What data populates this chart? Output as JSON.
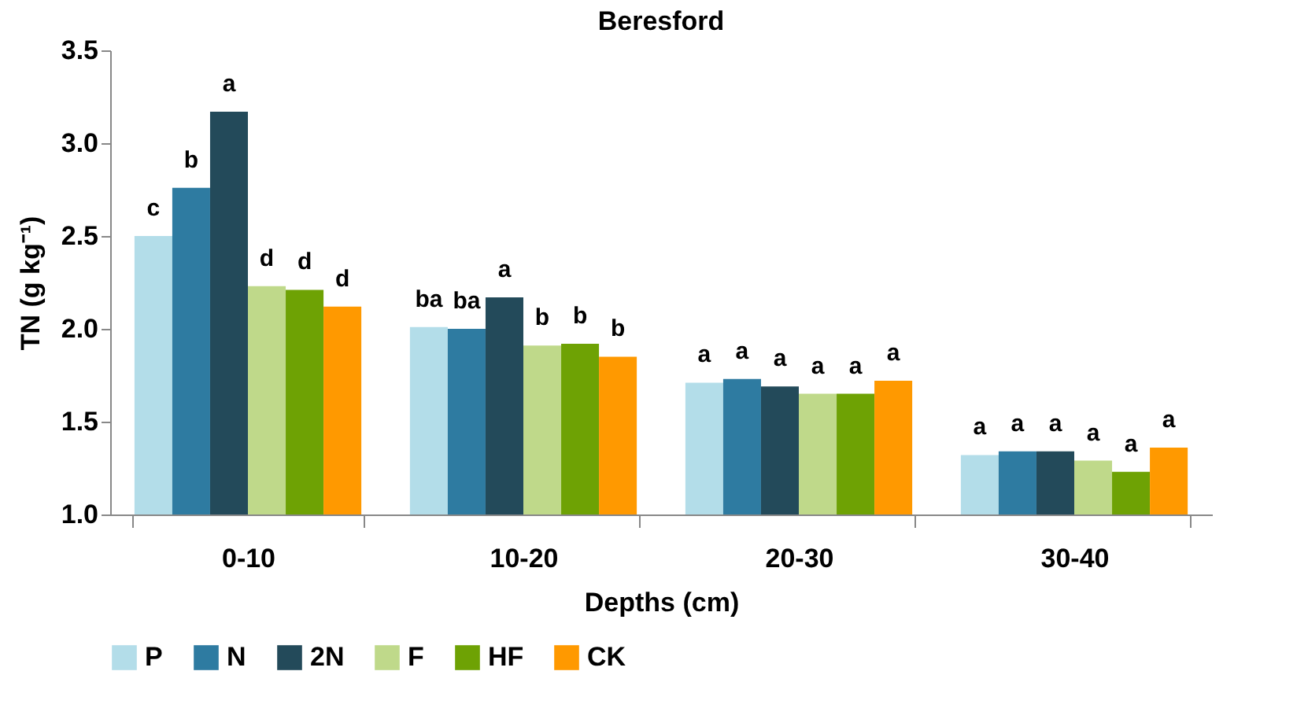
{
  "chart_data": {
    "type": "bar",
    "title": "Beresford",
    "xlabel": "Depths (cm)",
    "ylabel": "TN (g kg⁻¹)",
    "categories": [
      "0-10",
      "10-20",
      "20-30",
      "30-40"
    ],
    "series": [
      {
        "name": "P",
        "color": "#b3dde9",
        "values": [
          2.5,
          2.01,
          1.71,
          1.32
        ],
        "value_labels": [
          "c",
          "ba",
          "a",
          "a"
        ]
      },
      {
        "name": "N",
        "color": "#2e7ba1",
        "values": [
          2.76,
          2.0,
          1.73,
          1.34
        ],
        "value_labels": [
          "b",
          "ba",
          "a",
          "a"
        ]
      },
      {
        "name": "2N",
        "color": "#234a5a",
        "values": [
          3.17,
          2.17,
          1.69,
          1.34
        ],
        "value_labels": [
          "a",
          "a",
          "a",
          "a"
        ]
      },
      {
        "name": "F",
        "color": "#bfd98a",
        "values": [
          2.23,
          1.91,
          1.65,
          1.29
        ],
        "value_labels": [
          "d",
          "b",
          "a",
          "a"
        ]
      },
      {
        "name": "HF",
        "color": "#6ea204",
        "values": [
          2.21,
          1.92,
          1.65,
          1.23
        ],
        "value_labels": [
          "d",
          "b",
          "a",
          "a"
        ]
      },
      {
        "name": "CK",
        "color": "#ff9900",
        "values": [
          2.12,
          1.85,
          1.72,
          1.36
        ],
        "value_labels": [
          "d",
          "b",
          "a",
          "a"
        ]
      }
    ],
    "ylim": [
      1,
      3.5
    ],
    "yticks": [
      {
        "value": 1,
        "label": "1.0"
      },
      {
        "value": 1.5,
        "label": "1.5"
      },
      {
        "value": 2,
        "label": "2.0"
      },
      {
        "value": 2.5,
        "label": "2.5"
      },
      {
        "value": 3,
        "label": "3.0"
      },
      {
        "value": 3.5,
        "label": "3.5"
      }
    ],
    "grid": false,
    "legend": "bottom"
  }
}
